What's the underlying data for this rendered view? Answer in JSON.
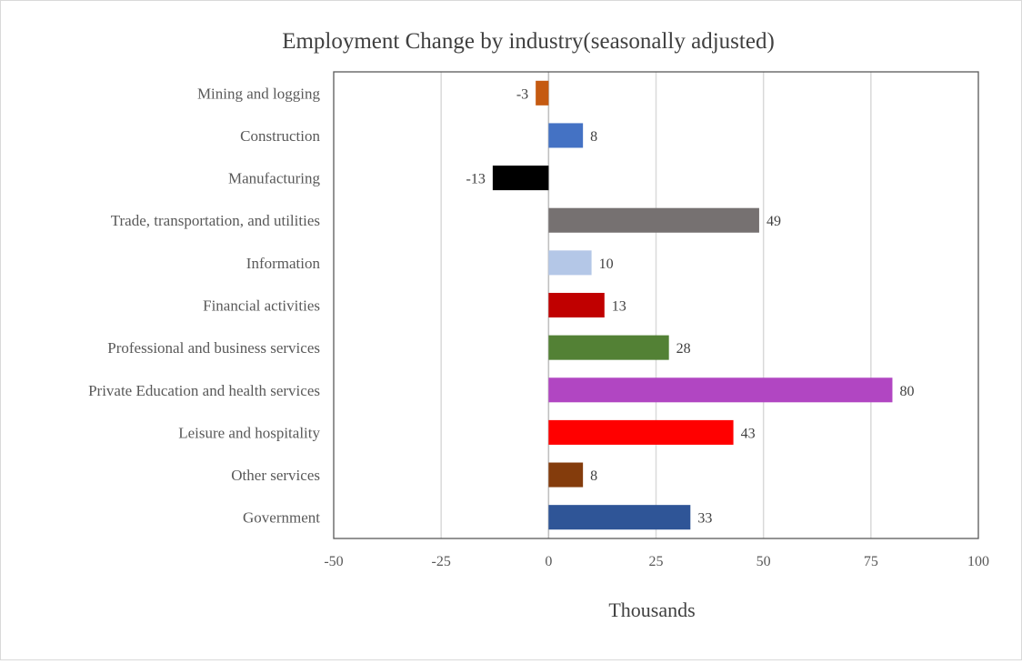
{
  "chart_data": {
    "type": "bar",
    "orientation": "horizontal",
    "title": "Employment Change by industry(seasonally adjusted)",
    "xlabel": "Thousands",
    "ylabel": "",
    "xlim": [
      -50,
      100
    ],
    "x_ticks": [
      -50,
      -25,
      0,
      25,
      50,
      75,
      100
    ],
    "grid": true,
    "legend": "none",
    "data_labels": true,
    "categories": [
      "Mining and logging",
      "Construction",
      "Manufacturing",
      "Trade, transportation, and utilities",
      "Information",
      "Financial activities",
      "Professional and business services",
      "Private Education and health services",
      "Leisure and hospitality",
      "Other services",
      "Government"
    ],
    "values": [
      -3,
      8,
      -13,
      49,
      10,
      13,
      28,
      80,
      43,
      8,
      33
    ],
    "colors": [
      "#c55a11",
      "#4472c4",
      "#000000",
      "#767171",
      "#b4c7e7",
      "#c00000",
      "#538135",
      "#b146c2",
      "#ff0000",
      "#843c0c",
      "#2f5597"
    ]
  }
}
